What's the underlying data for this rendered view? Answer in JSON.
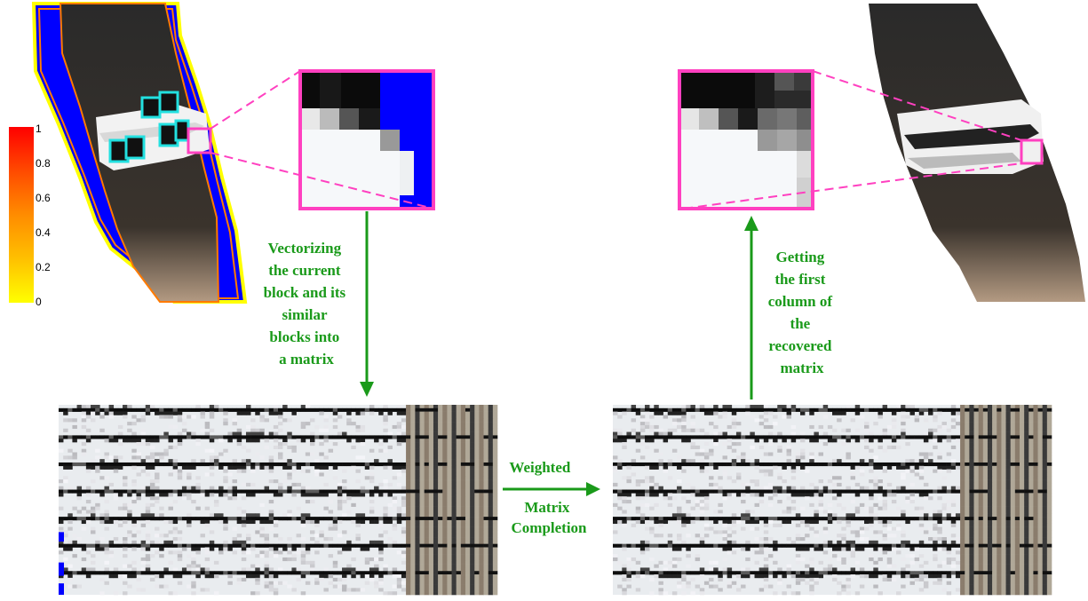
{
  "colorbar": {
    "ticks": [
      "1",
      "0.8",
      "0.6",
      "0.4",
      "0.2",
      "0"
    ],
    "gradient": [
      "#ff0000",
      "#ff4000",
      "#ff8000",
      "#ffb000",
      "#ffe000",
      "#ffff00"
    ]
  },
  "labels": {
    "vectorize": [
      "Vectorizing",
      "the current",
      "block and its",
      "similar",
      "blocks  into",
      "a matrix"
    ],
    "completion": [
      "Weighted",
      "Matrix",
      "Completion"
    ],
    "recover": [
      "Getting",
      "the first",
      "column of",
      "the",
      "recovered",
      "matrix"
    ]
  },
  "colors": {
    "arrow": "#1a9a1a",
    "highlight": "#ff40c0",
    "similar_blocks": "#22e0e0",
    "mask_blue": "#0000ff",
    "contour_yellow": "#ffff00",
    "contour_orange": "#ff8000"
  },
  "icons": [
    "down-arrow-icon",
    "right-arrow-icon",
    "up-arrow-icon"
  ]
}
